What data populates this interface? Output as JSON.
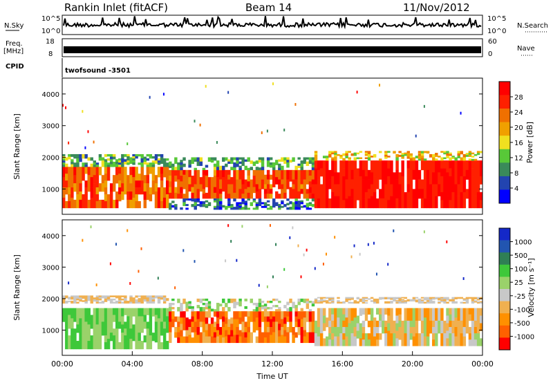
{
  "header": {
    "station": "Rankin Inlet (fitACF)",
    "beam": "Beam 14",
    "date": "11/Nov/2012"
  },
  "strips": {
    "nsky_label": "N.Sky",
    "nsky_ticks": [
      "10^5",
      "10^0"
    ],
    "nsearch_label": "N.Search",
    "nsearch_ticks": [
      "10^5",
      "10^0"
    ],
    "freq_label_top": "Freq.",
    "freq_label_bottom": "[MHz]",
    "freq_ticks": [
      "18",
      "8"
    ],
    "nave_label": "Nave",
    "nave_ticks": [
      "60",
      "0"
    ],
    "cpid_label": "CPID",
    "cpid_value": "twofsound -3501"
  },
  "colors": {
    "power_scale": [
      "#0000ff",
      "#2244b0",
      "#3a8a5a",
      "#58c838",
      "#f0e020",
      "#f0a000",
      "#f07000",
      "#ff2000",
      "#ff0000"
    ],
    "velocity_scale": [
      "#ff0000",
      "#ff6000",
      "#ff9000",
      "#f0b050",
      "#c8c8c8",
      "#9ad26a",
      "#3ec83a",
      "#2f7f55",
      "#2255b0",
      "#1428c8"
    ],
    "axis": "#000000"
  },
  "chart_data": [
    {
      "type": "heatmap",
      "panel": "power",
      "xlabel": "",
      "ylabel": "Slant Range [km]",
      "xlim": [
        "00:00",
        "24:00"
      ],
      "ylim": [
        200,
        4500
      ],
      "yticks": [
        "1000",
        "2000",
        "3000",
        "4000"
      ],
      "colorbar_label": "Power [dB]",
      "colorbar_ticks": [
        "4",
        "8",
        "12",
        "16",
        "20",
        "24",
        "28"
      ],
      "colorbar_range": [
        0,
        30
      ]
    },
    {
      "type": "heatmap",
      "panel": "velocity",
      "xlabel": "Time UT",
      "ylabel": "Slant Range [km]",
      "xlim": [
        "00:00",
        "24:00"
      ],
      "ylim": [
        200,
        4500
      ],
      "xticks": [
        "00:00",
        "04:00",
        "08:00",
        "12:00",
        "16:00",
        "20:00",
        "00:00"
      ],
      "yticks": [
        "1000",
        "2000",
        "3000",
        "4000"
      ],
      "colorbar_label": "Velocity [m s⁻¹]",
      "colorbar_ticks": [
        "1000",
        "500",
        "100",
        "25",
        "-25",
        "-100",
        "-500",
        "-1000"
      ],
      "colorbar_range": [
        -1000,
        1000
      ]
    }
  ]
}
